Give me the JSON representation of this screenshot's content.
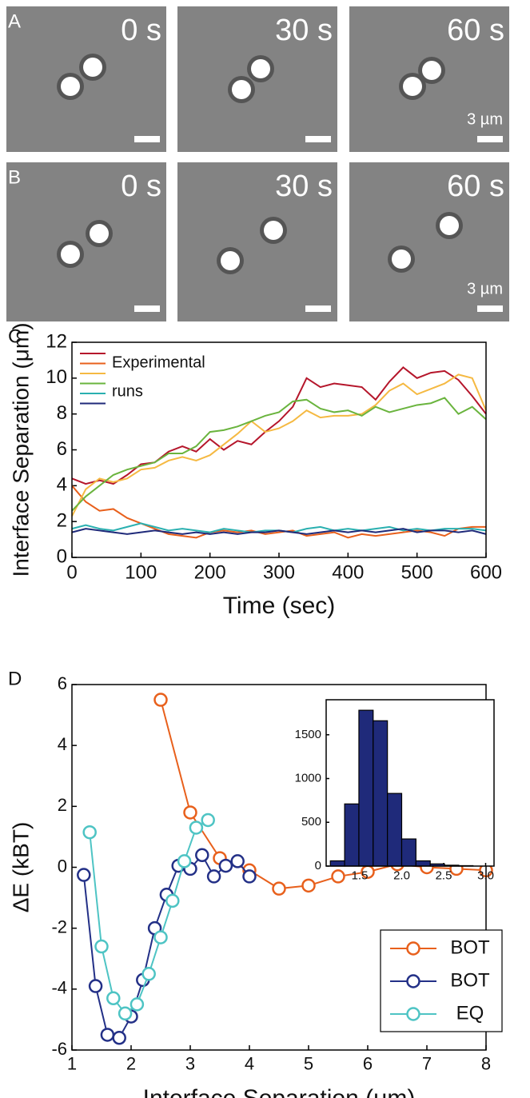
{
  "panels": {
    "A": {
      "label": "A",
      "frames": [
        "0 s",
        "30 s",
        "60 s"
      ],
      "scale_bar": "3 µm"
    },
    "B": {
      "label": "B",
      "frames": [
        "0 s",
        "30 s",
        "60 s"
      ],
      "scale_bar": "3 µm"
    }
  },
  "chart_data": [
    {
      "type": "line",
      "panel_label": "C",
      "xlabel": "Time (sec)",
      "ylabel": "Interface Separation (μm)",
      "legend_text": [
        "Experimental",
        "runs"
      ],
      "xlim": [
        0,
        600
      ],
      "xticks": [
        0,
        100,
        200,
        300,
        400,
        500,
        600
      ],
      "ylim": [
        0,
        12
      ],
      "yticks": [
        0,
        2,
        4,
        6,
        8,
        10,
        12
      ],
      "x": [
        0,
        20,
        40,
        60,
        80,
        100,
        120,
        140,
        160,
        180,
        200,
        220,
        240,
        260,
        280,
        300,
        320,
        340,
        360,
        380,
        400,
        420,
        440,
        460,
        480,
        500,
        520,
        540,
        560,
        580,
        600
      ],
      "series": [
        {
          "color": "#b5162b",
          "values": [
            4.4,
            4.1,
            4.3,
            4.1,
            4.6,
            5.2,
            5.3,
            5.9,
            6.2,
            5.9,
            6.6,
            6.0,
            6.5,
            6.3,
            7.0,
            7.6,
            8.4,
            10.0,
            9.5,
            9.7,
            9.6,
            9.5,
            8.8,
            9.8,
            10.6,
            10.0,
            10.3,
            10.4,
            9.9,
            9.0,
            8.0
          ]
        },
        {
          "color": "#e8601c",
          "values": [
            4.0,
            3.1,
            2.6,
            2.7,
            2.2,
            1.9,
            1.6,
            1.3,
            1.2,
            1.1,
            1.4,
            1.5,
            1.4,
            1.5,
            1.3,
            1.4,
            1.5,
            1.2,
            1.3,
            1.4,
            1.1,
            1.3,
            1.2,
            1.3,
            1.4,
            1.5,
            1.4,
            1.2,
            1.6,
            1.7,
            1.7
          ]
        },
        {
          "color": "#f5b942",
          "values": [
            2.3,
            3.8,
            4.4,
            4.2,
            4.4,
            4.9,
            5.0,
            5.4,
            5.6,
            5.4,
            5.7,
            6.3,
            6.9,
            7.6,
            7.0,
            7.2,
            7.6,
            8.2,
            7.8,
            7.9,
            7.9,
            8.0,
            8.5,
            9.3,
            9.7,
            9.1,
            9.4,
            9.7,
            10.2,
            10.0,
            8.2
          ]
        },
        {
          "color": "#6ab43e",
          "values": [
            2.6,
            3.4,
            4.0,
            4.6,
            4.9,
            5.1,
            5.3,
            5.8,
            5.8,
            6.2,
            7.0,
            7.1,
            7.3,
            7.6,
            7.9,
            8.1,
            8.7,
            8.8,
            8.3,
            8.1,
            8.2,
            7.9,
            8.4,
            8.1,
            8.3,
            8.5,
            8.6,
            8.9,
            8.0,
            8.4,
            7.7
          ]
        },
        {
          "color": "#2ab0b0",
          "values": [
            1.6,
            1.8,
            1.6,
            1.5,
            1.7,
            1.9,
            1.7,
            1.5,
            1.6,
            1.5,
            1.4,
            1.6,
            1.5,
            1.4,
            1.5,
            1.5,
            1.4,
            1.6,
            1.7,
            1.5,
            1.6,
            1.5,
            1.6,
            1.7,
            1.5,
            1.6,
            1.5,
            1.6,
            1.6,
            1.6,
            1.5
          ]
        },
        {
          "color": "#1f2a7a",
          "values": [
            1.4,
            1.6,
            1.5,
            1.4,
            1.3,
            1.4,
            1.5,
            1.4,
            1.3,
            1.4,
            1.3,
            1.4,
            1.3,
            1.4,
            1.4,
            1.5,
            1.4,
            1.3,
            1.4,
            1.5,
            1.4,
            1.5,
            1.4,
            1.5,
            1.6,
            1.4,
            1.5,
            1.5,
            1.4,
            1.5,
            1.3
          ]
        }
      ]
    },
    {
      "type": "line-markers",
      "panel_label": "D",
      "xlabel": "Interface Separation (μm)",
      "ylabel": "ΔE (kBT)",
      "xlim": [
        1,
        8
      ],
      "xticks": [
        1,
        2,
        3,
        4,
        5,
        6,
        7,
        8
      ],
      "ylim": [
        -6,
        6
      ],
      "yticks": [
        -6,
        -4,
        -2,
        0,
        2,
        4,
        6
      ],
      "series": [
        {
          "name": "BOT",
          "color": "#e8601c",
          "x": [
            2.5,
            3,
            3.5,
            4,
            4.5,
            5,
            5.5,
            6,
            6.5,
            7,
            7.5,
            8
          ],
          "values": [
            5.5,
            1.8,
            0.3,
            -0.1,
            -0.7,
            -0.6,
            -0.3,
            -0.15,
            0.1,
            0,
            -0.05,
            -0.1
          ]
        },
        {
          "name": "BOT",
          "color": "#233087",
          "x": [
            1.2,
            1.4,
            1.6,
            1.8,
            2.0,
            2.2,
            2.4,
            2.6,
            2.8,
            3.0,
            3.2,
            3.4,
            3.6,
            3.8,
            4.0
          ],
          "values": [
            -0.25,
            -3.9,
            -5.5,
            -5.6,
            -4.9,
            -3.7,
            -2.0,
            -0.9,
            0.05,
            -0.05,
            0.4,
            -0.3,
            0.05,
            0.2,
            -0.3
          ]
        },
        {
          "name": "EQ",
          "color": "#4ec4c4",
          "x": [
            1.3,
            1.5,
            1.7,
            1.9,
            2.1,
            2.3,
            2.5,
            2.7,
            2.9,
            3.1,
            3.3
          ],
          "values": [
            1.15,
            -2.6,
            -4.3,
            -4.8,
            -4.5,
            -3.5,
            -2.3,
            -1.1,
            0.2,
            1.3,
            1.55
          ]
        }
      ]
    },
    {
      "type": "histogram",
      "color": "#1f2a7a",
      "xlim": [
        1.1,
        3.1
      ],
      "xticks": [
        1.5,
        {
          "value": 2,
          "label": "2.0"
        },
        2.5,
        {
          "value": 3,
          "label": "3.0"
        }
      ],
      "ylim": [
        0,
        1900
      ],
      "yticks": [
        0,
        500,
        1000,
        1500
      ],
      "bins": [
        1.15,
        1.32,
        1.49,
        1.66,
        1.83,
        2.0,
        2.17,
        2.34,
        2.51,
        2.68,
        2.85
      ],
      "values": [
        60,
        710,
        1780,
        1660,
        830,
        310,
        60,
        25,
        10,
        5
      ]
    }
  ]
}
